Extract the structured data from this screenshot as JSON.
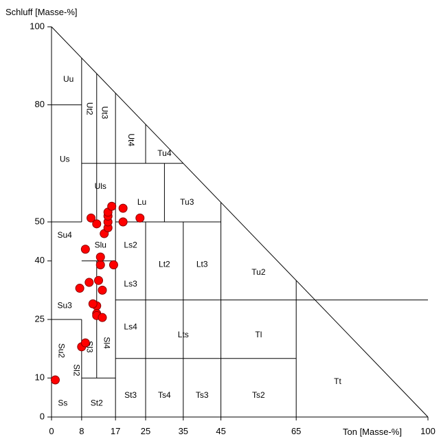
{
  "chart_data": {
    "type": "scatter",
    "title": "",
    "ylabel": "Schluff  [Masse-%]",
    "xlabel": "Ton  [Masse-%]",
    "xlim": [
      0,
      100
    ],
    "ylim": [
      0,
      100
    ],
    "x_ticks": [
      "0",
      "8",
      "17",
      "25",
      "35",
      "45",
      "65",
      "100"
    ],
    "x_tick_values": [
      0,
      8,
      17,
      25,
      35,
      45,
      65,
      100
    ],
    "y_ticks": [
      "0",
      "10",
      "25",
      "40",
      "50",
      "80",
      "100"
    ],
    "y_tick_values": [
      0,
      10,
      25,
      40,
      50,
      80,
      100
    ],
    "marker_color": "#ff0000",
    "boundary_lines": [
      [
        [
          8,
          0
        ],
        [
          8,
          25
        ]
      ],
      [
        [
          0,
          25
        ],
        [
          8,
          25
        ]
      ],
      [
        [
          0,
          50
        ],
        [
          8,
          50
        ]
      ],
      [
        [
          0,
          80
        ],
        [
          8,
          80
        ]
      ],
      [
        [
          8,
          10
        ],
        [
          17,
          10
        ]
      ],
      [
        [
          12,
          10
        ],
        [
          12,
          40
        ]
      ],
      [
        [
          8,
          40
        ],
        [
          12,
          40
        ]
      ],
      [
        [
          8,
          50
        ],
        [
          8,
          92
        ]
      ],
      [
        [
          12,
          50
        ],
        [
          12,
          88
        ]
      ],
      [
        [
          8,
          65
        ],
        [
          25,
          65
        ]
      ],
      [
        [
          17,
          0
        ],
        [
          17,
          83
        ]
      ],
      [
        [
          17,
          30
        ],
        [
          100,
          30
        ]
      ],
      [
        [
          17,
          15
        ],
        [
          65,
          15
        ]
      ],
      [
        [
          12,
          40
        ],
        [
          17,
          40
        ]
      ],
      [
        [
          17,
          50
        ],
        [
          45,
          50
        ]
      ],
      [
        [
          25,
          0
        ],
        [
          25,
          50
        ]
      ],
      [
        [
          30,
          50
        ],
        [
          30,
          65
        ]
      ],
      [
        [
          25,
          65
        ],
        [
          25,
          75
        ]
      ],
      [
        [
          25,
          65
        ],
        [
          35,
          65
        ]
      ],
      [
        [
          35,
          0
        ],
        [
          35,
          50
        ]
      ],
      [
        [
          45,
          0
        ],
        [
          45,
          55
        ]
      ],
      [
        [
          65,
          0
        ],
        [
          65,
          35
        ]
      ]
    ],
    "regions": [
      {
        "label": "Uu",
        "x": 4.5,
        "y": 86.5
      },
      {
        "label": "Ut2",
        "x": 10,
        "y": 79,
        "rotate": true
      },
      {
        "label": "Ut3",
        "x": 14,
        "y": 78,
        "rotate": true
      },
      {
        "label": "Ut4",
        "x": 21,
        "y": 71,
        "rotate": true
      },
      {
        "label": "Us",
        "x": 3.5,
        "y": 66
      },
      {
        "label": "Tu4",
        "x": 30,
        "y": 67.5
      },
      {
        "label": "Uls",
        "x": 13,
        "y": 59
      },
      {
        "label": "Lu",
        "x": 24,
        "y": 55
      },
      {
        "label": "Tu3",
        "x": 36,
        "y": 55
      },
      {
        "label": "Su4",
        "x": 3.5,
        "y": 46.5
      },
      {
        "label": "Slu",
        "x": 13,
        "y": 44
      },
      {
        "label": "Ls2",
        "x": 21,
        "y": 44
      },
      {
        "label": "Lt2",
        "x": 30,
        "y": 39
      },
      {
        "label": "Lt3",
        "x": 40,
        "y": 39
      },
      {
        "label": "Tu2",
        "x": 55,
        "y": 37
      },
      {
        "label": "Ls3",
        "x": 21,
        "y": 34
      },
      {
        "label": "Su3",
        "x": 3.5,
        "y": 28.5
      },
      {
        "label": "Ls4",
        "x": 21,
        "y": 23
      },
      {
        "label": "Lts",
        "x": 35,
        "y": 21
      },
      {
        "label": "Tl",
        "x": 55,
        "y": 21
      },
      {
        "label": "Sl3",
        "x": 10,
        "y": 18,
        "rotate": true
      },
      {
        "label": "Sl4",
        "x": 14.5,
        "y": 19,
        "rotate": true
      },
      {
        "label": "Su2",
        "x": 2.5,
        "y": 17,
        "rotate": true
      },
      {
        "label": "Sl2",
        "x": 6.5,
        "y": 12,
        "rotate": true
      },
      {
        "label": "Tt",
        "x": 76,
        "y": 9
      },
      {
        "label": "Ss",
        "x": 3,
        "y": 3.5
      },
      {
        "label": "St2",
        "x": 12,
        "y": 3.5
      },
      {
        "label": "St3",
        "x": 21,
        "y": 5.5
      },
      {
        "label": "Ts4",
        "x": 30,
        "y": 5.5
      },
      {
        "label": "Ts3",
        "x": 40,
        "y": 5.5
      },
      {
        "label": "Ts2",
        "x": 55,
        "y": 5.5
      }
    ],
    "series": [
      {
        "points": [
          [
            1,
            9.5
          ],
          [
            8,
            18
          ],
          [
            9,
            19
          ],
          [
            9,
            43
          ],
          [
            10.5,
            51
          ],
          [
            10,
            34.5
          ],
          [
            7.5,
            33
          ],
          [
            12,
            28.5
          ],
          [
            11,
            29
          ],
          [
            12,
            26.5
          ],
          [
            12,
            26
          ],
          [
            13.5,
            25.5
          ],
          [
            12.5,
            35
          ],
          [
            13.5,
            32.5
          ],
          [
            13,
            39
          ],
          [
            13,
            41
          ],
          [
            12,
            49.5
          ],
          [
            14,
            47
          ],
          [
            15,
            48.5
          ],
          [
            15,
            50
          ],
          [
            15,
            51.5
          ],
          [
            15,
            52.5
          ],
          [
            16,
            54
          ],
          [
            19,
            53.5
          ],
          [
            16.5,
            39
          ],
          [
            19,
            50
          ],
          [
            23.5,
            51
          ]
        ]
      }
    ]
  }
}
